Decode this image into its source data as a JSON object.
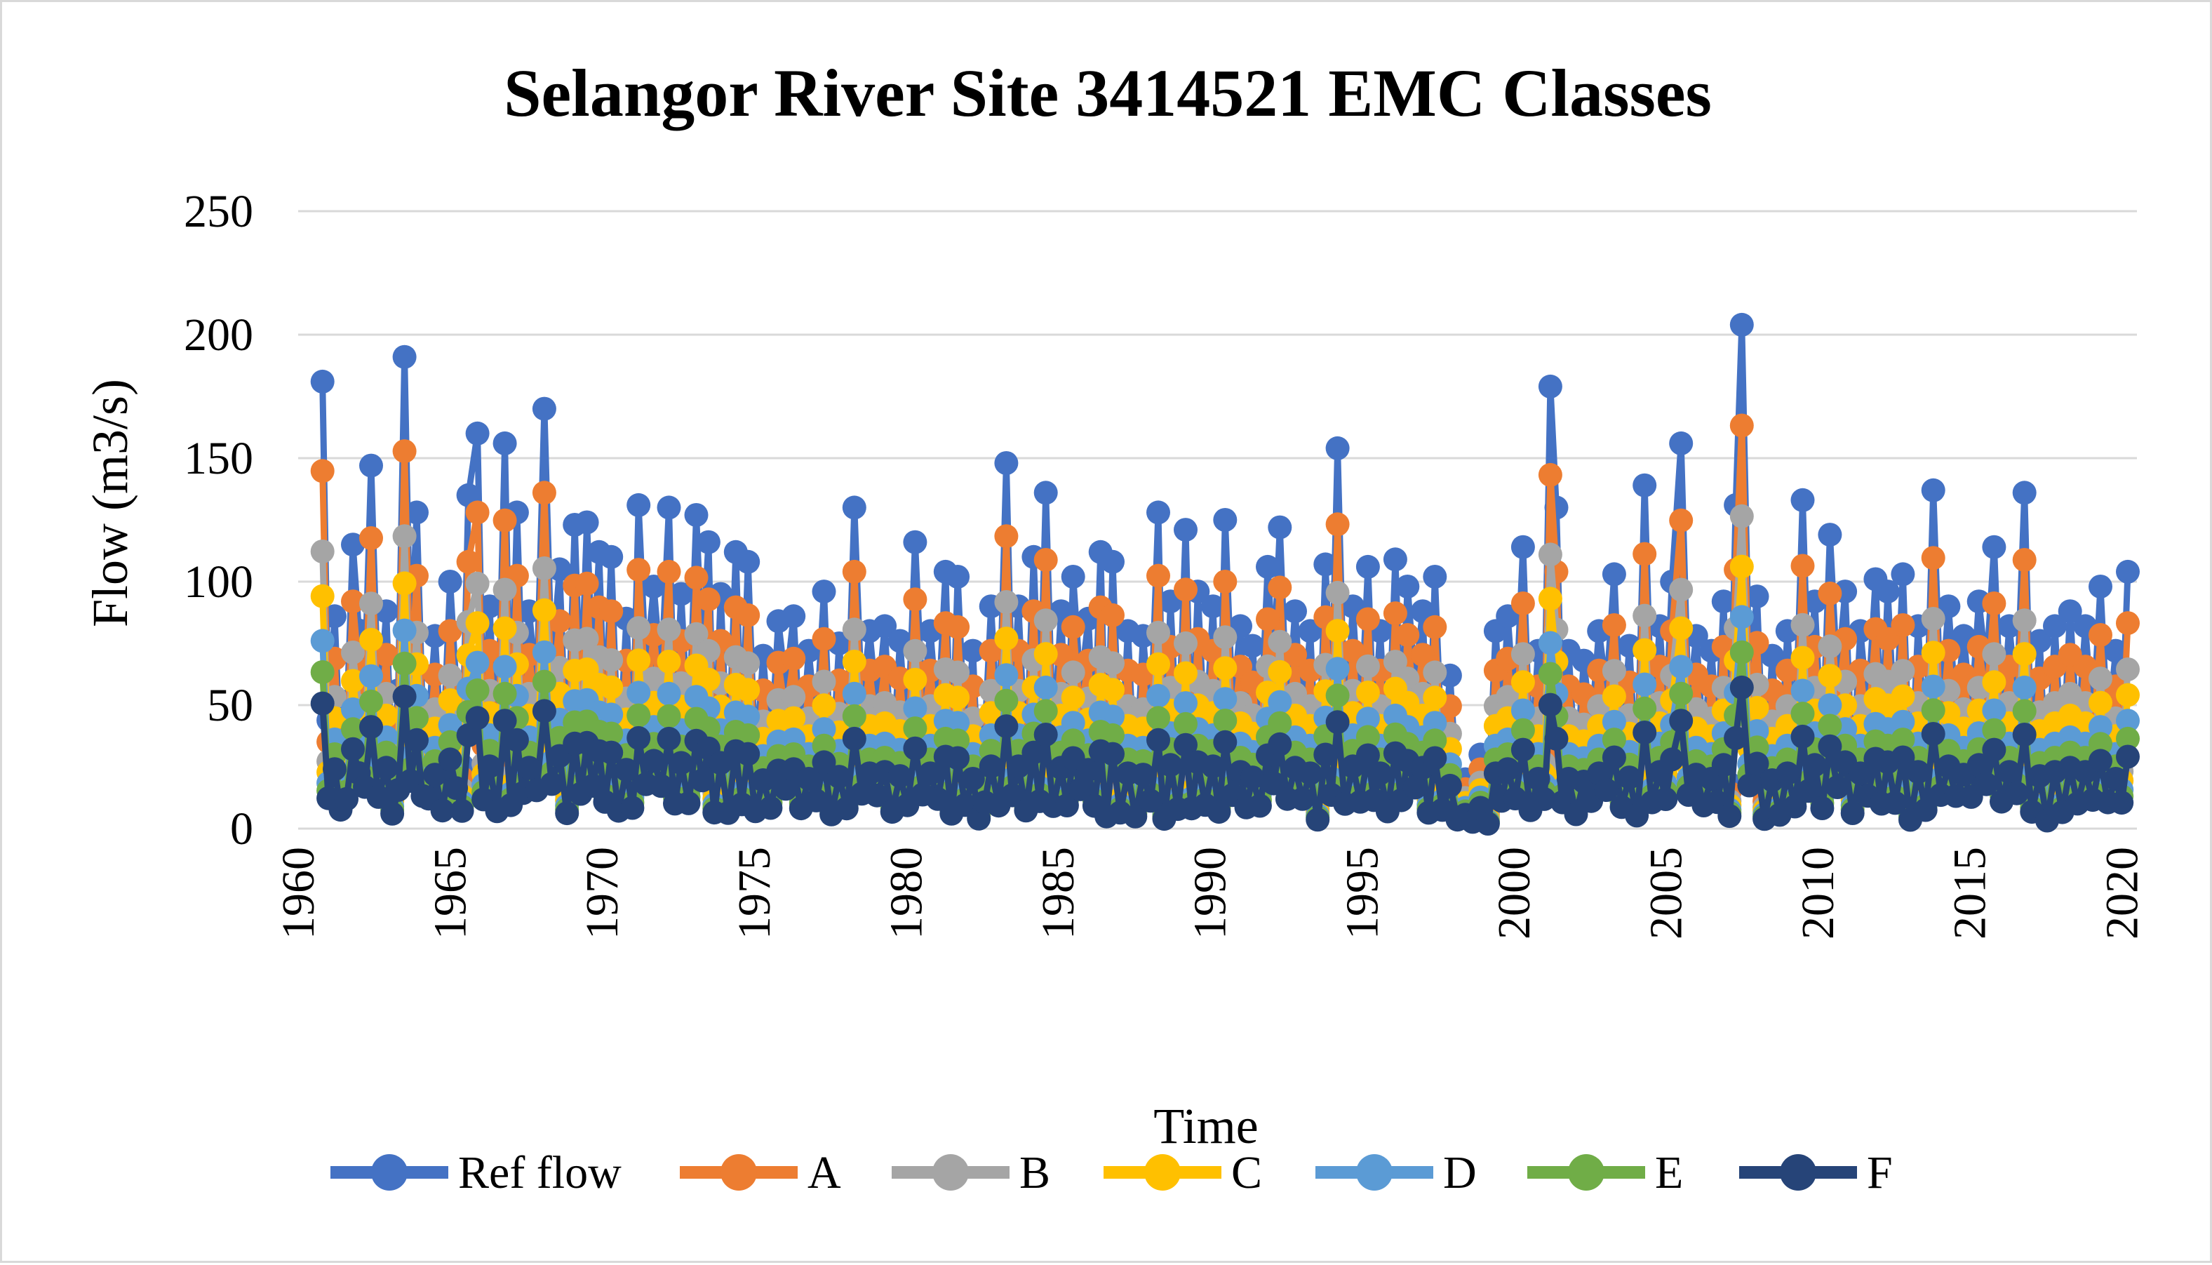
{
  "chart_data": {
    "type": "line",
    "title": "Selangor River Site 3414521 EMC Classes",
    "xlabel": "Time",
    "ylabel": "Flow (m3/s)",
    "xlim": [
      1960,
      2020.5
    ],
    "ylim": [
      0,
      250
    ],
    "x_ticks": [
      "1960",
      "1965",
      "1970",
      "1975",
      "1980",
      "1985",
      "1990",
      "1995",
      "2000",
      "2005",
      "2010",
      "2015",
      "2020"
    ],
    "y_ticks": [
      "0",
      "50",
      "100",
      "150",
      "200",
      "250"
    ],
    "grid": "horizontal",
    "legend_position": "bottom",
    "markers": true,
    "x_resolution": "approximately 4 samples per year (1960–2020), peak values read from the chart",
    "peaks": [
      {
        "x": 1960.8,
        "y": 181
      },
      {
        "x": 1961.2,
        "y": 86
      },
      {
        "x": 1961.8,
        "y": 115
      },
      {
        "x": 1962.4,
        "y": 147
      },
      {
        "x": 1962.9,
        "y": 88
      },
      {
        "x": 1963.5,
        "y": 191
      },
      {
        "x": 1963.9,
        "y": 128
      },
      {
        "x": 1964.5,
        "y": 78
      },
      {
        "x": 1965.0,
        "y": 100
      },
      {
        "x": 1965.6,
        "y": 135
      },
      {
        "x": 1965.9,
        "y": 160
      },
      {
        "x": 1966.3,
        "y": 90
      },
      {
        "x": 1966.8,
        "y": 156
      },
      {
        "x": 1967.2,
        "y": 128
      },
      {
        "x": 1967.6,
        "y": 88
      },
      {
        "x": 1968.1,
        "y": 170
      },
      {
        "x": 1968.6,
        "y": 105
      },
      {
        "x": 1969.1,
        "y": 123
      },
      {
        "x": 1969.5,
        "y": 124
      },
      {
        "x": 1969.9,
        "y": 112
      },
      {
        "x": 1970.3,
        "y": 110
      },
      {
        "x": 1970.8,
        "y": 85
      },
      {
        "x": 1971.2,
        "y": 131
      },
      {
        "x": 1971.7,
        "y": 98
      },
      {
        "x": 1972.2,
        "y": 130
      },
      {
        "x": 1972.6,
        "y": 95
      },
      {
        "x": 1973.1,
        "y": 127
      },
      {
        "x": 1973.5,
        "y": 116
      },
      {
        "x": 1973.9,
        "y": 95
      },
      {
        "x": 1974.4,
        "y": 112
      },
      {
        "x": 1974.8,
        "y": 108
      },
      {
        "x": 1975.3,
        "y": 70
      },
      {
        "x": 1975.8,
        "y": 84
      },
      {
        "x": 1976.3,
        "y": 86
      },
      {
        "x": 1976.8,
        "y": 72
      },
      {
        "x": 1977.3,
        "y": 96
      },
      {
        "x": 1977.8,
        "y": 75
      },
      {
        "x": 1978.3,
        "y": 130
      },
      {
        "x": 1978.8,
        "y": 80
      },
      {
        "x": 1979.3,
        "y": 82
      },
      {
        "x": 1979.8,
        "y": 76
      },
      {
        "x": 1980.3,
        "y": 116
      },
      {
        "x": 1980.8,
        "y": 80
      },
      {
        "x": 1981.3,
        "y": 104
      },
      {
        "x": 1981.7,
        "y": 102
      },
      {
        "x": 1982.2,
        "y": 72
      },
      {
        "x": 1982.8,
        "y": 90
      },
      {
        "x": 1983.3,
        "y": 148
      },
      {
        "x": 1983.7,
        "y": 90
      },
      {
        "x": 1984.2,
        "y": 110
      },
      {
        "x": 1984.6,
        "y": 136
      },
      {
        "x": 1985.1,
        "y": 88
      },
      {
        "x": 1985.5,
        "y": 102
      },
      {
        "x": 1986.0,
        "y": 85
      },
      {
        "x": 1986.4,
        "y": 112
      },
      {
        "x": 1986.8,
        "y": 108
      },
      {
        "x": 1987.3,
        "y": 80
      },
      {
        "x": 1987.8,
        "y": 78
      },
      {
        "x": 1988.3,
        "y": 128
      },
      {
        "x": 1988.7,
        "y": 92
      },
      {
        "x": 1989.2,
        "y": 121
      },
      {
        "x": 1989.6,
        "y": 96
      },
      {
        "x": 1990.1,
        "y": 90
      },
      {
        "x": 1990.5,
        "y": 125
      },
      {
        "x": 1991.0,
        "y": 82
      },
      {
        "x": 1991.4,
        "y": 74
      },
      {
        "x": 1991.9,
        "y": 106
      },
      {
        "x": 1992.3,
        "y": 122
      },
      {
        "x": 1992.8,
        "y": 88
      },
      {
        "x": 1993.3,
        "y": 80
      },
      {
        "x": 1993.8,
        "y": 107
      },
      {
        "x": 1994.2,
        "y": 154
      },
      {
        "x": 1994.7,
        "y": 90
      },
      {
        "x": 1995.2,
        "y": 106
      },
      {
        "x": 1995.6,
        "y": 80
      },
      {
        "x": 1996.1,
        "y": 109
      },
      {
        "x": 1996.5,
        "y": 98
      },
      {
        "x": 1997.0,
        "y": 88
      },
      {
        "x": 1997.4,
        "y": 102
      },
      {
        "x": 1997.9,
        "y": 62
      },
      {
        "x": 1998.4,
        "y": 20
      },
      {
        "x": 1998.9,
        "y": 30
      },
      {
        "x": 1999.4,
        "y": 80
      },
      {
        "x": 1999.8,
        "y": 86
      },
      {
        "x": 2000.3,
        "y": 114
      },
      {
        "x": 2000.8,
        "y": 72
      },
      {
        "x": 2001.2,
        "y": 179
      },
      {
        "x": 2001.4,
        "y": 130
      },
      {
        "x": 2001.8,
        "y": 72
      },
      {
        "x": 2002.3,
        "y": 68
      },
      {
        "x": 2002.8,
        "y": 80
      },
      {
        "x": 2003.3,
        "y": 103
      },
      {
        "x": 2003.8,
        "y": 74
      },
      {
        "x": 2004.3,
        "y": 139
      },
      {
        "x": 2004.8,
        "y": 82
      },
      {
        "x": 2005.2,
        "y": 100
      },
      {
        "x": 2005.5,
        "y": 156
      },
      {
        "x": 2006.0,
        "y": 78
      },
      {
        "x": 2006.5,
        "y": 72
      },
      {
        "x": 2006.9,
        "y": 92
      },
      {
        "x": 2007.3,
        "y": 131
      },
      {
        "x": 2007.5,
        "y": 204
      },
      {
        "x": 2008.0,
        "y": 94
      },
      {
        "x": 2008.5,
        "y": 70
      },
      {
        "x": 2009.0,
        "y": 80
      },
      {
        "x": 2009.5,
        "y": 133
      },
      {
        "x": 2009.9,
        "y": 92
      },
      {
        "x": 2010.4,
        "y": 119
      },
      {
        "x": 2010.9,
        "y": 96
      },
      {
        "x": 2011.4,
        "y": 80
      },
      {
        "x": 2011.9,
        "y": 101
      },
      {
        "x": 2012.3,
        "y": 96
      },
      {
        "x": 2012.8,
        "y": 103
      },
      {
        "x": 2013.3,
        "y": 82
      },
      {
        "x": 2013.8,
        "y": 137
      },
      {
        "x": 2014.3,
        "y": 90
      },
      {
        "x": 2014.8,
        "y": 78
      },
      {
        "x": 2015.3,
        "y": 92
      },
      {
        "x": 2015.8,
        "y": 114
      },
      {
        "x": 2016.3,
        "y": 82
      },
      {
        "x": 2016.8,
        "y": 136
      },
      {
        "x": 2017.3,
        "y": 76
      },
      {
        "x": 2017.8,
        "y": 82
      },
      {
        "x": 2018.3,
        "y": 88
      },
      {
        "x": 2018.8,
        "y": 82
      },
      {
        "x": 2019.3,
        "y": 98
      },
      {
        "x": 2019.8,
        "y": 72
      },
      {
        "x": 2020.2,
        "y": 104
      }
    ],
    "series": [
      {
        "name": "Ref flow",
        "color": "#4472c4",
        "peak_ratio": 1.0,
        "floor": 8
      },
      {
        "name": "A",
        "color": "#ed7d31",
        "peak_ratio": 0.8,
        "floor": 6
      },
      {
        "name": "B",
        "color": "#a5a5a5",
        "peak_ratio": 0.62,
        "floor": 5
      },
      {
        "name": "C",
        "color": "#ffc000",
        "peak_ratio": 0.52,
        "floor": 4
      },
      {
        "name": "D",
        "color": "#5b9bd5",
        "peak_ratio": 0.42,
        "floor": 3
      },
      {
        "name": "E",
        "color": "#70ad47",
        "peak_ratio": 0.35,
        "floor": 2.5
      },
      {
        "name": "F",
        "color": "#264478",
        "peak_ratio": 0.28,
        "floor": 2
      }
    ]
  }
}
